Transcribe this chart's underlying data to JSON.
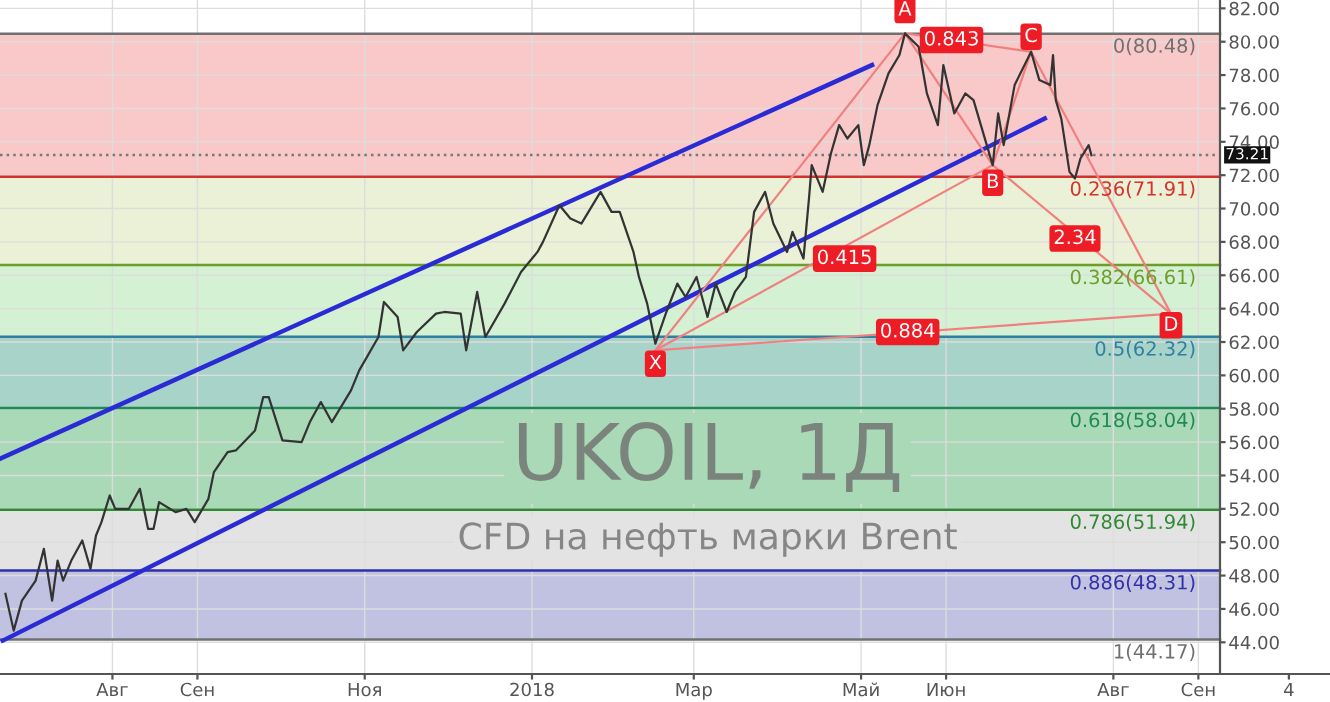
{
  "chart_data": {
    "type": "line",
    "title": "UKOIL, 1Д",
    "subtitle": "CFD на нефть марки Brent",
    "xlim": [
      "2017-06-21",
      "2018-10-19"
    ],
    "xticks": [
      {
        "value": "2017-08-01",
        "label": "Авг"
      },
      {
        "value": "2017-09-01",
        "label": "Сен"
      },
      {
        "value": "2017-11-01",
        "label": "Ноя"
      },
      {
        "value": "2018-01-01",
        "label": "2018"
      },
      {
        "value": "2018-03-01",
        "label": "Мар"
      },
      {
        "value": "2018-05-01",
        "label": "Май"
      },
      {
        "value": "2018-06-01",
        "label": "Июн"
      },
      {
        "value": "2018-08-01",
        "label": "Авг"
      },
      {
        "value": "2018-09-01",
        "label": "Сен"
      },
      {
        "value": "2018-10-04",
        "label": "4"
      }
    ],
    "ylim": [
      42.1,
      82.5
    ],
    "yticks": [
      {
        "value": 44,
        "label": "44.00"
      },
      {
        "value": 46,
        "label": "46.00"
      },
      {
        "value": 48,
        "label": "48.00"
      },
      {
        "value": 50,
        "label": "50.00"
      },
      {
        "value": 52,
        "label": "52.00"
      },
      {
        "value": 54,
        "label": "54.00"
      },
      {
        "value": 56,
        "label": "56.00"
      },
      {
        "value": 58,
        "label": "58.00"
      },
      {
        "value": 60,
        "label": "60.00"
      },
      {
        "value": 62,
        "label": "62.00"
      },
      {
        "value": 64,
        "label": "64.00"
      },
      {
        "value": 66,
        "label": "66.00"
      },
      {
        "value": 68,
        "label": "68.00"
      },
      {
        "value": 70,
        "label": "70.00"
      },
      {
        "value": 72,
        "label": "72.00"
      },
      {
        "value": 74,
        "label": "74.00"
      },
      {
        "value": 76,
        "label": "76.00"
      },
      {
        "value": 78,
        "label": "78.00"
      },
      {
        "value": 80,
        "label": "80.00"
      },
      {
        "value": 82,
        "label": "82.00"
      }
    ],
    "grid": true,
    "series": [
      {
        "color": "#333333",
        "x": [
          "2017-06-23",
          "2017-06-26",
          "2017-06-29",
          "2017-07-04",
          "2017-07-07",
          "2017-07-10",
          "2017-07-12",
          "2017-07-14",
          "2017-07-17",
          "2017-07-21",
          "2017-07-24",
          "2017-07-26",
          "2017-07-28",
          "2017-07-31",
          "2017-08-02",
          "2017-08-07",
          "2017-08-11",
          "2017-08-14",
          "2017-08-16",
          "2017-08-18",
          "2017-08-24",
          "2017-08-28",
          "2017-08-31",
          "2017-09-05",
          "2017-09-07",
          "2017-09-12",
          "2017-09-15",
          "2017-09-22",
          "2017-09-25",
          "2017-09-27",
          "2017-10-02",
          "2017-10-09",
          "2017-10-12",
          "2017-10-16",
          "2017-10-20",
          "2017-10-27",
          "2017-10-30",
          "2017-11-06",
          "2017-11-08",
          "2017-11-13",
          "2017-11-15",
          "2017-11-20",
          "2017-11-27",
          "2017-11-30",
          "2017-12-06",
          "2017-12-08",
          "2017-12-12",
          "2017-12-15",
          "2017-12-22",
          "2017-12-28",
          "2018-01-03",
          "2018-01-05",
          "2018-01-11",
          "2018-01-15",
          "2018-01-19",
          "2018-01-26",
          "2018-01-30",
          "2018-02-02",
          "2018-02-07",
          "2018-02-09",
          "2018-02-12",
          "2018-02-15",
          "2018-02-19",
          "2018-02-23",
          "2018-02-26",
          "2018-03-02",
          "2018-03-06",
          "2018-03-09",
          "2018-03-13",
          "2018-03-16",
          "2018-03-20",
          "2018-03-23",
          "2018-03-27",
          "2018-03-30",
          "2018-04-04",
          "2018-04-06",
          "2018-04-10",
          "2018-04-12",
          "2018-04-13",
          "2018-04-17",
          "2018-04-20",
          "2018-04-23",
          "2018-04-26",
          "2018-04-30",
          "2018-05-02",
          "2018-05-04",
          "2018-05-07",
          "2018-05-11",
          "2018-05-15",
          "2018-05-17",
          "2018-05-22",
          "2018-05-25",
          "2018-05-29",
          "2018-05-31",
          "2018-06-04",
          "2018-06-08",
          "2018-06-11",
          "2018-06-18",
          "2018-06-20",
          "2018-06-22",
          "2018-06-26",
          "2018-07-02",
          "2018-07-05",
          "2018-07-09",
          "2018-07-10",
          "2018-07-11",
          "2018-07-13",
          "2018-07-16",
          "2018-07-18",
          "2018-07-20",
          "2018-07-23",
          "2018-07-24"
        ],
        "values": [
          46.9,
          44.7,
          46.5,
          47.7,
          49.6,
          46.5,
          48.9,
          47.7,
          48.9,
          50.1,
          48.4,
          50.4,
          51.2,
          52.8,
          52.0,
          52.0,
          53.2,
          50.8,
          50.8,
          52.4,
          51.8,
          52.0,
          51.2,
          52.6,
          54.2,
          55.4,
          55.5,
          56.7,
          58.7,
          58.7,
          56.1,
          56.0,
          57.2,
          58.4,
          57.2,
          59.1,
          60.3,
          62.3,
          64.4,
          63.5,
          61.5,
          62.6,
          63.7,
          63.8,
          63.7,
          61.5,
          65.0,
          62.3,
          64.3,
          66.2,
          67.4,
          68.0,
          70.2,
          69.4,
          69.1,
          71.0,
          69.8,
          69.8,
          67.4,
          65.9,
          64.3,
          61.9,
          63.8,
          65.5,
          64.7,
          65.9,
          63.5,
          65.5,
          63.8,
          65.0,
          65.9,
          69.8,
          71.0,
          69.1,
          67.4,
          68.6,
          67.0,
          70.6,
          72.6,
          71.0,
          73.3,
          75.0,
          74.2,
          75.0,
          72.6,
          73.8,
          76.2,
          78.1,
          79.2,
          80.5,
          79.7,
          76.9,
          75.0,
          78.6,
          75.7,
          76.9,
          76.5,
          72.6,
          75.7,
          73.8,
          77.4,
          79.4,
          77.7,
          77.4,
          79.2,
          76.5,
          75.4,
          72.2,
          71.8,
          73.0,
          73.8,
          73.2
        ]
      },
      {
        "color": "#2b2bd6",
        "x": [
          "2017-06-21",
          "2018-05-05"
        ],
        "values": [
          55.0,
          78.6
        ]
      },
      {
        "color": "#2b2bd6",
        "x": [
          "2017-06-22",
          "2018-07-07"
        ],
        "values": [
          44.1,
          75.4
        ]
      },
      {
        "color": "#f08080",
        "x": [
          "2018-02-15",
          "2018-05-17",
          "2018-06-18",
          "2018-07-02",
          "2018-08-22"
        ],
        "values": [
          61.5,
          80.5,
          72.6,
          79.4,
          63.7
        ]
      },
      {
        "color": "#f08080",
        "x": [
          "2018-02-15",
          "2018-06-18"
        ],
        "values": [
          61.5,
          72.6
        ]
      },
      {
        "color": "#f08080",
        "x": [
          "2018-05-17",
          "2018-07-02"
        ],
        "values": [
          80.5,
          79.4
        ]
      },
      {
        "color": "#f08080",
        "x": [
          "2018-06-18",
          "2018-08-22"
        ],
        "values": [
          72.6,
          63.7
        ]
      },
      {
        "color": "#f08080",
        "x": [
          "2018-02-15",
          "2018-08-22"
        ],
        "values": [
          61.5,
          63.7
        ]
      }
    ],
    "bands": [
      {
        "axis": "y",
        "from": 71.91,
        "to": 80.48,
        "color": "#f9c9c9"
      },
      {
        "axis": "y",
        "from": 66.61,
        "to": 71.91,
        "color": "#eaf1d6"
      },
      {
        "axis": "y",
        "from": 62.32,
        "to": 66.61,
        "color": "#d5f1d3"
      },
      {
        "axis": "y",
        "from": 58.04,
        "to": 62.32,
        "color": "#a8d3c9"
      },
      {
        "axis": "y",
        "from": 51.94,
        "to": 58.04,
        "color": "#a9d9b6"
      },
      {
        "axis": "y",
        "from": 48.31,
        "to": 51.94,
        "color": "#e3e3e3"
      },
      {
        "axis": "y",
        "from": 44.17,
        "to": 48.31,
        "color": "#c1c1e2"
      }
    ],
    "ref_lines": [
      {
        "axis": "y",
        "value": 80.48,
        "label": "0(80.48)",
        "color": "#707070"
      },
      {
        "axis": "y",
        "value": 71.91,
        "label": "0.236(71.91)",
        "color": "#d8302a"
      },
      {
        "axis": "y",
        "value": 66.61,
        "label": "0.382(66.61)",
        "color": "#6e9e2a"
      },
      {
        "axis": "y",
        "value": 62.32,
        "label": "0.5(62.32)",
        "color": "#2f7fa0"
      },
      {
        "axis": "y",
        "value": 58.04,
        "label": "0.618(58.04)",
        "color": "#1f8a55"
      },
      {
        "axis": "y",
        "value": 51.94,
        "label": "0.786(51.94)",
        "color": "#2e8a32"
      },
      {
        "axis": "y",
        "value": 48.31,
        "label": "0.886(48.31)",
        "color": "#3030a8"
      },
      {
        "axis": "y",
        "value": 44.17,
        "label": "1(44.17)",
        "color": "#707070"
      },
      {
        "axis": "y",
        "value": 73.21,
        "label": "73.21",
        "color": "#777777",
        "line_style": "dotted"
      }
    ],
    "annotations": [
      {
        "text": "X",
        "x": "2018-02-15",
        "y": 60.7
      },
      {
        "text": "A",
        "x": "2018-05-17",
        "y": 81.9
      },
      {
        "text": "B",
        "x": "2018-06-18",
        "y": 71.55
      },
      {
        "text": "C",
        "x": "2018-07-02",
        "y": 80.3
      },
      {
        "text": "D",
        "x": "2018-08-22",
        "y": 63.0
      },
      {
        "text": "0.415",
        "x": "2018-04-25",
        "y": 67.0
      },
      {
        "text": "0.843",
        "x": "2018-06-03",
        "y": 80.1
      },
      {
        "text": "2.34",
        "x": "2018-07-18",
        "y": 68.2
      },
      {
        "text": "0.884",
        "x": "2018-05-18",
        "y": 62.6
      }
    ]
  }
}
